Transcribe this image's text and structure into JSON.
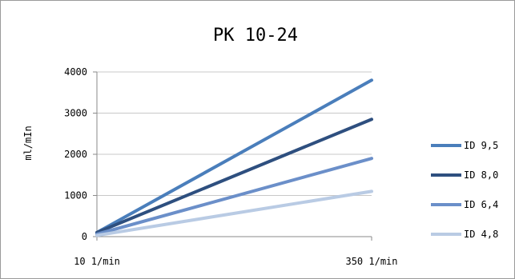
{
  "chart_data": {
    "type": "line",
    "title": "PK 10-24",
    "xlabel": "",
    "ylabel": "ml/mIn",
    "x": [
      10,
      350
    ],
    "x_tick_labels": [
      "10  1/min",
      "350  1/min"
    ],
    "ylim": [
      0,
      4000
    ],
    "y_ticks": [
      0,
      1000,
      2000,
      3000,
      4000
    ],
    "grid": "horizontal",
    "legend_position": "right",
    "series": [
      {
        "name": "ID 9,5",
        "values": [
          100,
          3800
        ],
        "color": "#4a7ebb"
      },
      {
        "name": "ID 8,0",
        "values": [
          100,
          2850
        ],
        "color": "#2e4f7f"
      },
      {
        "name": "ID 6,4",
        "values": [
          60,
          1900
        ],
        "color": "#6b8fc9"
      },
      {
        "name": "ID 4,8",
        "values": [
          30,
          1100
        ],
        "color": "#b9cbe4"
      }
    ]
  }
}
